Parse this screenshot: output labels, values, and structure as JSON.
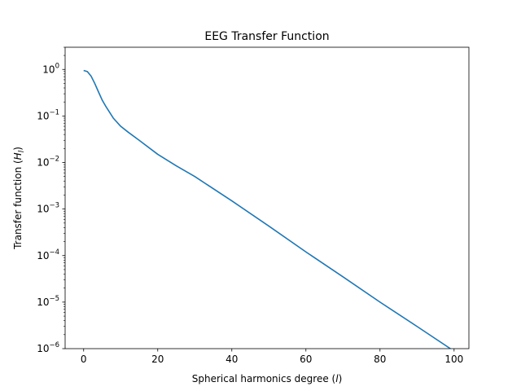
{
  "chart_data": {
    "type": "line",
    "title": "EEG Transfer Function",
    "xlabel": "Spherical harmonics degree (l)",
    "ylabel": "Transfer function (H_l)",
    "xlim": [
      -5,
      104
    ],
    "ylim": [
      1e-06,
      3
    ],
    "yscale": "log",
    "grid": false,
    "x_ticks": [
      0,
      20,
      40,
      60,
      80,
      100
    ],
    "y_ticks": [
      {
        "value": 1,
        "base": "10",
        "exp": "0"
      },
      {
        "value": 0.1,
        "base": "10",
        "exp": "−1"
      },
      {
        "value": 0.01,
        "base": "10",
        "exp": "−2"
      },
      {
        "value": 0.001,
        "base": "10",
        "exp": "−3"
      },
      {
        "value": 0.0001,
        "base": "10",
        "exp": "−4"
      },
      {
        "value": 1e-05,
        "base": "10",
        "exp": "−5"
      },
      {
        "value": 1e-06,
        "base": "10",
        "exp": "−6"
      }
    ],
    "series": [
      {
        "color": "#1f77b4",
        "x": [
          0,
          1,
          2,
          3,
          4,
          5,
          6,
          8,
          10,
          12,
          15,
          20,
          25,
          30,
          40,
          50,
          60,
          70,
          80,
          90,
          99
        ],
        "y": [
          0.95,
          0.9,
          0.72,
          0.5,
          0.33,
          0.22,
          0.16,
          0.09,
          0.06,
          0.045,
          0.03,
          0.015,
          0.0085,
          0.005,
          0.0015,
          0.00043,
          0.00012,
          3.5e-05,
          1e-05,
          3e-06,
          1e-06
        ]
      }
    ]
  }
}
